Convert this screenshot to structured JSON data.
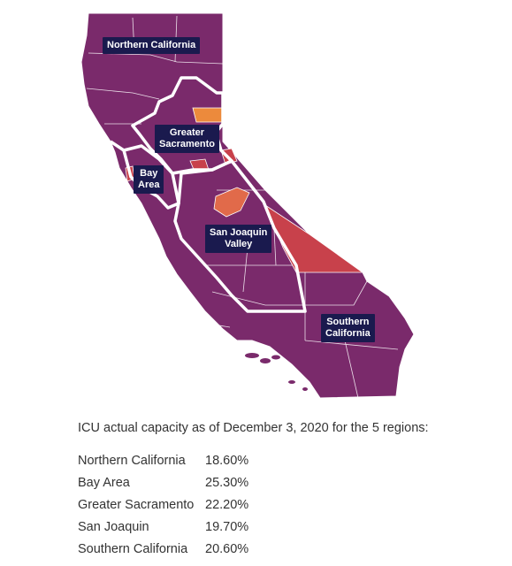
{
  "map": {
    "colors": {
      "base": "#7a2a6b",
      "high": "#c8414b",
      "mid": "#e16a4a",
      "orange": "#ec8a3c",
      "border": "#ffffff",
      "label_bg": "#1a1a4e"
    },
    "regions": [
      {
        "id": "northern-california",
        "label": "Northern California"
      },
      {
        "id": "greater-sacramento",
        "label": "Greater\nSacramento"
      },
      {
        "id": "bay-area",
        "label": "Bay\nArea"
      },
      {
        "id": "san-joaquin-valley",
        "label": "San Joaquin\nValley"
      },
      {
        "id": "southern-california",
        "label": "Southern\nCalifornia"
      }
    ]
  },
  "caption": "ICU actual capacity as of December 3, 2020 for the 5 regions:",
  "capacity_table": [
    {
      "region": "Northern California",
      "value": "18.60%"
    },
    {
      "region": "Bay Area",
      "value": "25.30%"
    },
    {
      "region": "Greater Sacramento",
      "value": "22.20%"
    },
    {
      "region": "San Joaquin",
      "value": "19.70%"
    },
    {
      "region": "Southern California",
      "value": "20.60%"
    }
  ]
}
